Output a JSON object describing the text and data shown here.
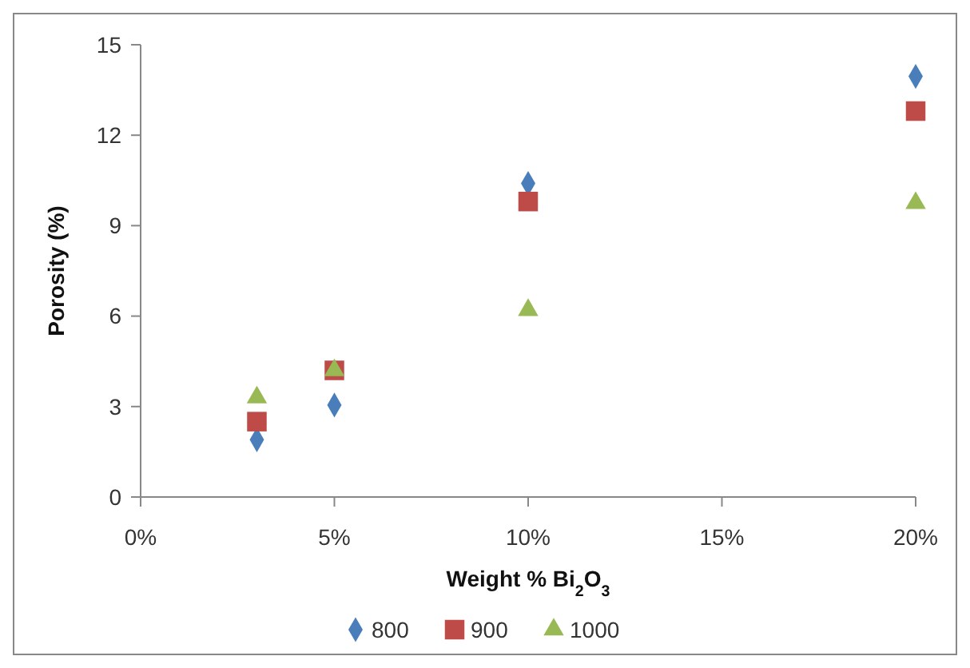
{
  "chart_data": {
    "type": "scatter",
    "xlabel": "Weight % Bi$_{2}$O$_{3}$",
    "ylabel": "Porosity (%)",
    "xlim": [
      0,
      20
    ],
    "xticks": [
      {
        "value": 0,
        "label": "0%"
      },
      {
        "value": 5,
        "label": "5%"
      },
      {
        "value": 10,
        "label": "10%"
      },
      {
        "value": 15,
        "label": "15%"
      },
      {
        "value": 20,
        "label": "20%"
      }
    ],
    "ylim": [
      0,
      15
    ],
    "yticks": [
      0,
      3,
      6,
      9,
      12,
      15
    ],
    "grid": false,
    "legend": "bottom",
    "series": [
      {
        "name": "800",
        "color": "#4a7ebb",
        "marker": "diamond",
        "x": [
          3,
          5,
          10,
          20
        ],
        "values": [
          1.9,
          3.05,
          10.4,
          13.95
        ]
      },
      {
        "name": "900",
        "color": "#be4b48",
        "marker": "square",
        "x": [
          3,
          5,
          10,
          20
        ],
        "values": [
          2.5,
          4.2,
          9.8,
          12.8
        ]
      },
      {
        "name": "1000",
        "color": "#98b954",
        "marker": "triangle",
        "x": [
          3,
          5,
          10,
          20
        ],
        "values": [
          3.3,
          4.2,
          6.2,
          9.75
        ]
      }
    ]
  }
}
